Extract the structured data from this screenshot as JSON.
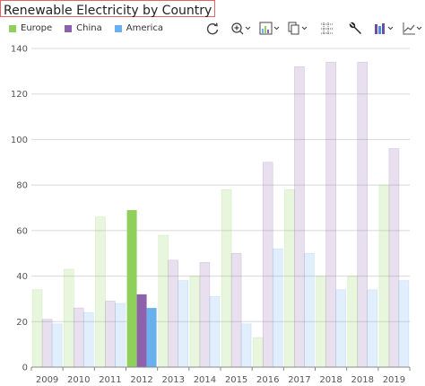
{
  "title": "Renewable Electricity by Country",
  "legend": [
    {
      "name": "Europe",
      "color": "#8fd05c"
    },
    {
      "name": "China",
      "color": "#8e62ab"
    },
    {
      "name": "America",
      "color": "#6bb0ee"
    }
  ],
  "toolbar": {
    "icons": [
      "refresh-icon",
      "zoom-in-icon",
      "chart-type-icon",
      "copy-icon",
      "grid-icon",
      "wrench-icon",
      "bar-chart-icon",
      "line-chart-icon"
    ]
  },
  "chart_data": {
    "type": "bar",
    "title": "Renewable Electricity by Country",
    "categories": [
      "2009",
      "2010",
      "2011",
      "2012",
      "2013",
      "2014",
      "2015",
      "2016",
      "2017",
      "2018",
      "2018",
      "2019"
    ],
    "series": [
      {
        "name": "Europe",
        "color": "#8fd05c",
        "values": [
          34,
          43,
          66,
          69,
          58,
          40,
          78,
          13,
          78,
          40,
          40,
          80
        ]
      },
      {
        "name": "China",
        "color": "#8e62ab",
        "values": [
          21,
          26,
          29,
          32,
          47,
          46,
          50,
          90,
          132,
          134,
          134,
          96
        ]
      },
      {
        "name": "America",
        "color": "#6bb0ee",
        "values": [
          19,
          24,
          28,
          26,
          38,
          31,
          19,
          52,
          50,
          34,
          34,
          38
        ]
      }
    ],
    "highlight_index": 3,
    "ylim": [
      0,
      140
    ],
    "yticks": [
      0,
      20,
      40,
      60,
      80,
      100,
      120,
      140
    ],
    "grid": true,
    "legend_position": "top-left"
  }
}
